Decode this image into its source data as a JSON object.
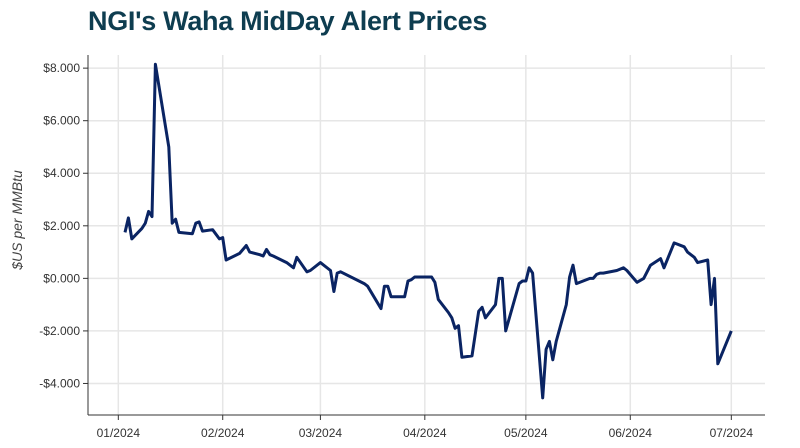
{
  "chart_data": {
    "type": "line",
    "title": "NGI's Waha MidDay Alert Prices",
    "xlabel": "",
    "ylabel": "$US per MMBtu",
    "ylim": [
      -5.2,
      8.5
    ],
    "xlim": [
      "2023-12-23",
      "2024-07-11"
    ],
    "grid": true,
    "line_color": "#0a2463",
    "title_color": "#0e3d50",
    "yticks": [
      8,
      6,
      4,
      2,
      0,
      -2,
      -4
    ],
    "ytick_labels": [
      "$8.000",
      "$6.000",
      "$4.000",
      "$2.000",
      "$0.000",
      "-$2.000",
      "-$4.000"
    ],
    "xticks": [
      "2024-01-01",
      "2024-02-01",
      "2024-03-01",
      "2024-04-01",
      "2024-05-01",
      "2024-06-01",
      "2024-07-01"
    ],
    "xtick_labels": [
      "01/2024",
      "02/2024",
      "03/2024",
      "04/2024",
      "05/2024",
      "06/2024",
      "07/2024"
    ],
    "series": [
      {
        "x": [
          "2024-01-03",
          "2024-01-04",
          "2024-01-05",
          "2024-01-08",
          "2024-01-09",
          "2024-01-10",
          "2024-01-11",
          "2024-01-12",
          "2024-01-16",
          "2024-01-17",
          "2024-01-18",
          "2024-01-19",
          "2024-01-23",
          "2024-01-24",
          "2024-01-25",
          "2024-01-26",
          "2024-01-29",
          "2024-01-31",
          "2024-02-01",
          "2024-02-02",
          "2024-02-06",
          "2024-02-08",
          "2024-02-09",
          "2024-02-12",
          "2024-02-13",
          "2024-02-14",
          "2024-02-15",
          "2024-02-16",
          "2024-02-20",
          "2024-02-21",
          "2024-02-22",
          "2024-02-23",
          "2024-02-26",
          "2024-02-27",
          "2024-03-01",
          "2024-03-04",
          "2024-03-05",
          "2024-03-06",
          "2024-03-07",
          "2024-03-14",
          "2024-03-15",
          "2024-03-19",
          "2024-03-20",
          "2024-03-21",
          "2024-03-22",
          "2024-03-26",
          "2024-03-27",
          "2024-03-28",
          "2024-03-29",
          "2024-04-01",
          "2024-04-03",
          "2024-04-04",
          "2024-04-05",
          "2024-04-08",
          "2024-04-09",
          "2024-04-10",
          "2024-04-11",
          "2024-04-12",
          "2024-04-15",
          "2024-04-17",
          "2024-04-18",
          "2024-04-19",
          "2024-04-22",
          "2024-04-23",
          "2024-04-24",
          "2024-04-25",
          "2024-04-29",
          "2024-04-30",
          "2024-05-01",
          "2024-05-02",
          "2024-05-03",
          "2024-05-06",
          "2024-05-07",
          "2024-05-08",
          "2024-05-09",
          "2024-05-10",
          "2024-05-13",
          "2024-05-14",
          "2024-05-15",
          "2024-05-16",
          "2024-05-20",
          "2024-05-21",
          "2024-05-22",
          "2024-05-23",
          "2024-05-24",
          "2024-05-28",
          "2024-05-30",
          "2024-05-31",
          "2024-06-03",
          "2024-06-05",
          "2024-06-07",
          "2024-06-10",
          "2024-06-11",
          "2024-06-14",
          "2024-06-17",
          "2024-06-18",
          "2024-06-20",
          "2024-06-21",
          "2024-06-24",
          "2024-06-25",
          "2024-06-26",
          "2024-06-27",
          "2024-07-01"
        ],
        "y": [
          1.75,
          2.3,
          1.5,
          1.9,
          2.1,
          2.55,
          2.35,
          8.15,
          5.0,
          2.1,
          2.25,
          1.75,
          1.7,
          2.1,
          2.15,
          1.8,
          1.85,
          1.5,
          1.55,
          0.7,
          0.95,
          1.25,
          1.0,
          0.9,
          0.85,
          1.1,
          0.9,
          0.85,
          0.6,
          0.5,
          0.4,
          0.8,
          0.25,
          0.3,
          0.6,
          0.3,
          -0.5,
          0.2,
          0.25,
          -0.2,
          -0.3,
          -1.15,
          -0.3,
          -0.3,
          -0.7,
          -0.7,
          -0.1,
          -0.05,
          0.05,
          0.05,
          0.05,
          -0.15,
          -0.8,
          -1.3,
          -1.5,
          -1.9,
          -1.8,
          -3.0,
          -2.95,
          -1.25,
          -1.1,
          -1.5,
          -1.0,
          0.0,
          0.0,
          -2.0,
          -0.2,
          -0.1,
          -0.1,
          0.4,
          0.2,
          -4.55,
          -2.7,
          -2.4,
          -3.1,
          -2.4,
          -1.0,
          0.05,
          0.5,
          -0.2,
          0.0,
          0.0,
          0.15,
          0.2,
          0.2,
          0.3,
          0.4,
          0.3,
          -0.15,
          0.0,
          0.5,
          0.75,
          0.4,
          1.35,
          1.2,
          1.0,
          0.8,
          0.6,
          0.7,
          -1.0,
          0.0,
          -3.25,
          -2.0
        ]
      }
    ]
  }
}
